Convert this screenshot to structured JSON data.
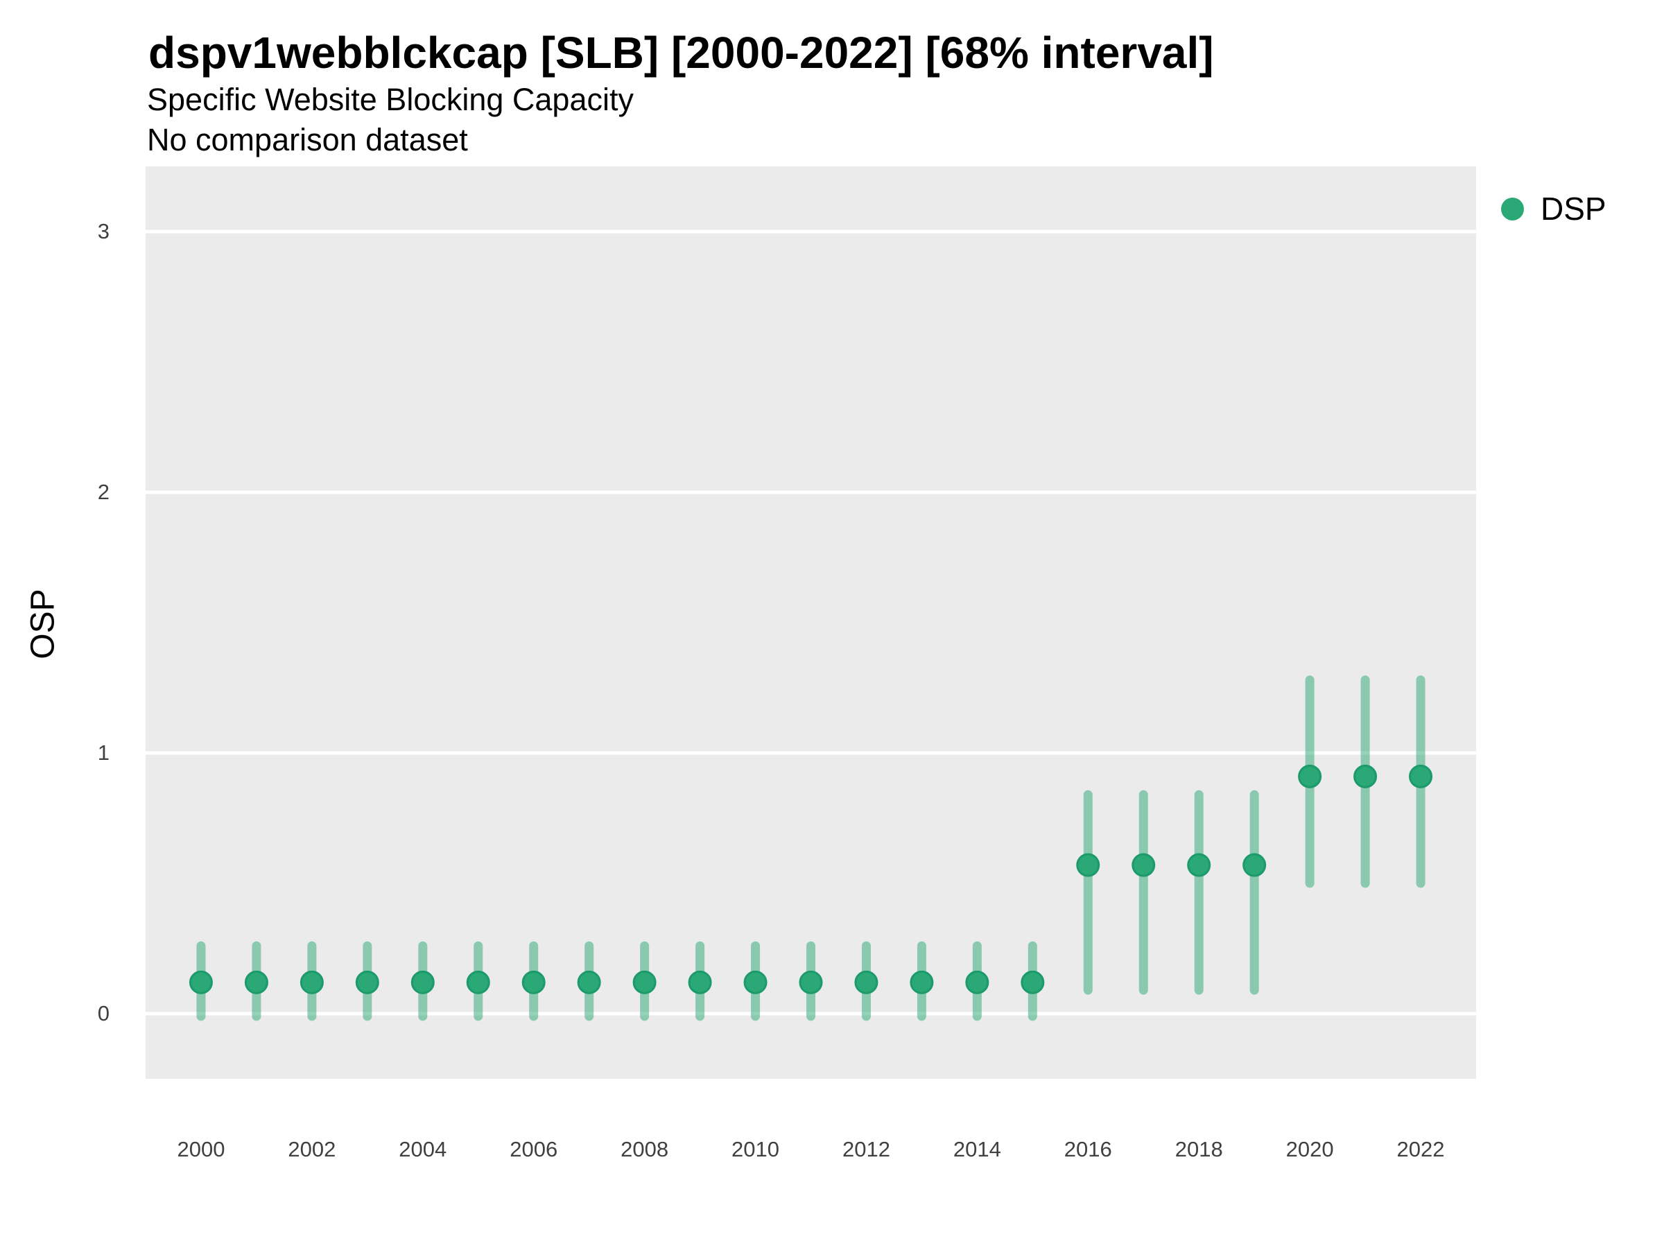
{
  "header": {
    "title": "dspv1webblckcap [SLB] [2000-2022] [68% interval]",
    "subtitle": "Specific Website Blocking Capacity",
    "note": "No comparison dataset"
  },
  "legend": {
    "label": "DSP",
    "position": "right-top"
  },
  "axes": {
    "y_label": "OSP",
    "x_label": "",
    "y_ticks": [
      0,
      1,
      2,
      3
    ],
    "x_ticks": [
      2000,
      2002,
      2004,
      2006,
      2008,
      2010,
      2012,
      2014,
      2016,
      2018,
      2020,
      2022
    ]
  },
  "colors": {
    "point": "#2aa876",
    "point_stroke": "#1d9a6c",
    "interval": "#2aa876",
    "interval_opacity": 0.5,
    "panel_bg": "#ebebeb",
    "grid": "#ffffff",
    "tick_text": "#404040",
    "title_text": "#000000"
  },
  "chart_data": {
    "type": "scatter",
    "subtype": "point-interval",
    "interval_level": "68%",
    "title": "dspv1webblckcap [SLB] [2000-2022] [68% interval]",
    "xlabel": "",
    "ylabel": "OSP",
    "xlim": [
      1999,
      2023
    ],
    "ylim": [
      -0.25,
      3.25
    ],
    "grid": "horizontal-major-only",
    "legend_position": "right-top",
    "x": [
      2000,
      2001,
      2002,
      2003,
      2004,
      2005,
      2006,
      2007,
      2008,
      2009,
      2010,
      2011,
      2012,
      2013,
      2014,
      2015,
      2016,
      2017,
      2018,
      2019,
      2020,
      2021,
      2022
    ],
    "series": [
      {
        "name": "DSP",
        "values": [
          0.12,
          0.12,
          0.12,
          0.12,
          0.12,
          0.12,
          0.12,
          0.12,
          0.12,
          0.12,
          0.12,
          0.12,
          0.12,
          0.12,
          0.12,
          0.12,
          0.57,
          0.57,
          0.57,
          0.57,
          0.91,
          0.91,
          0.91
        ],
        "lower": [
          -0.01,
          -0.01,
          -0.01,
          -0.01,
          -0.01,
          -0.01,
          -0.01,
          -0.01,
          -0.01,
          -0.01,
          -0.01,
          -0.01,
          -0.01,
          -0.01,
          -0.01,
          -0.01,
          0.09,
          0.09,
          0.09,
          0.09,
          0.5,
          0.5,
          0.5
        ],
        "upper": [
          0.26,
          0.26,
          0.26,
          0.26,
          0.26,
          0.26,
          0.26,
          0.26,
          0.26,
          0.26,
          0.26,
          0.26,
          0.26,
          0.26,
          0.26,
          0.26,
          0.84,
          0.84,
          0.84,
          0.84,
          1.28,
          1.28,
          1.28
        ]
      }
    ]
  }
}
